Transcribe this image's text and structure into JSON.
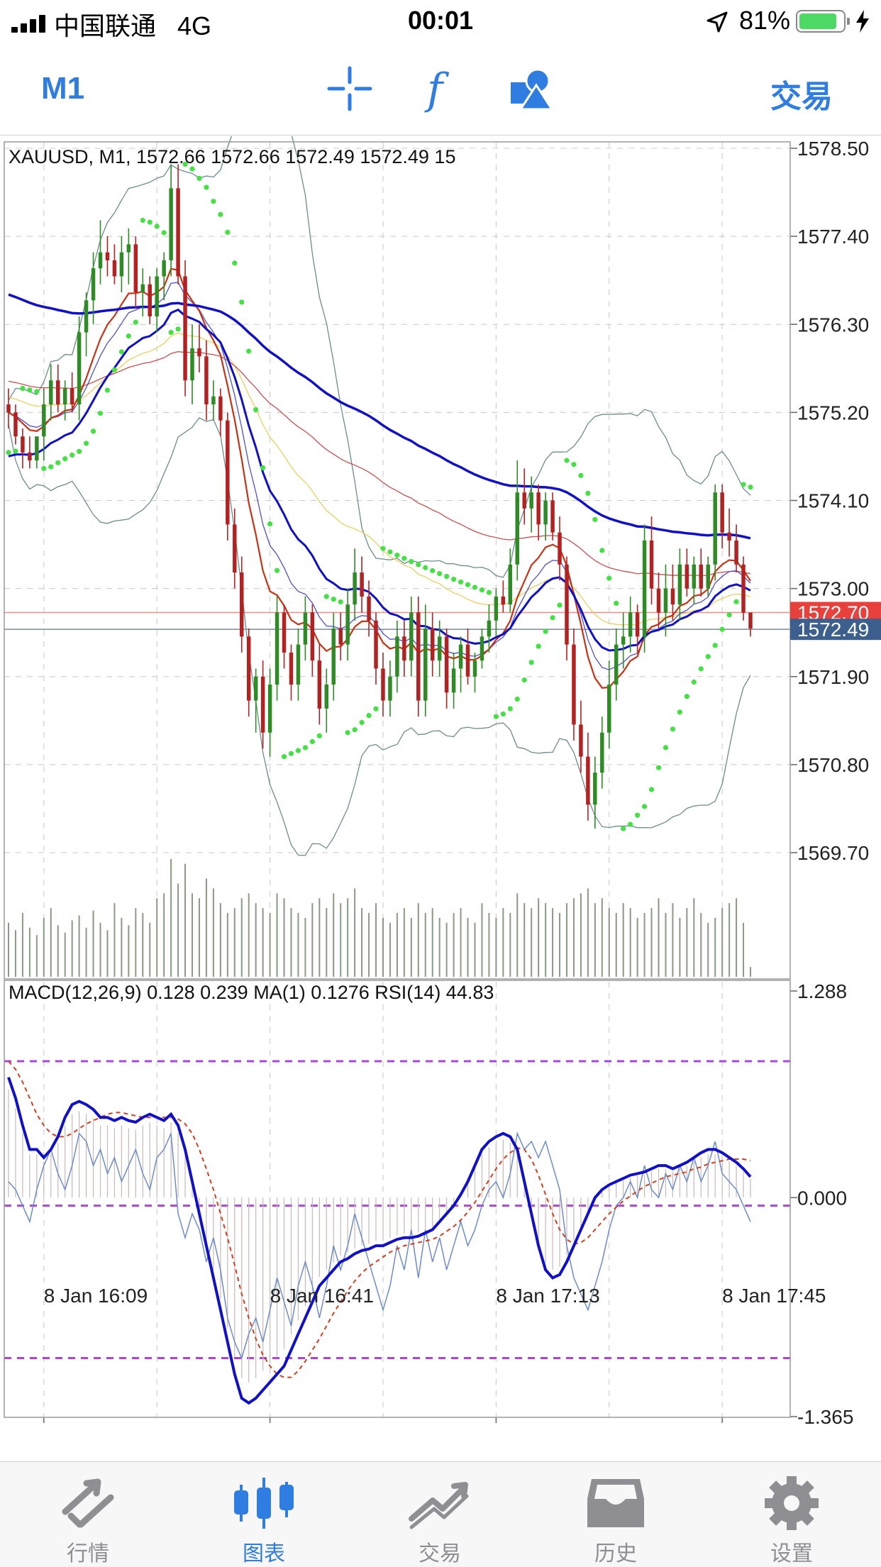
{
  "status_bar": {
    "carrier": "中国联通",
    "network": "4G",
    "time": "00:01",
    "battery_percent": "81%"
  },
  "toolbar": {
    "timeframe": "M1",
    "trade_label": "交易",
    "icons": [
      "crosshair-icon",
      "indicator-f-icon",
      "objects-shapes-icon"
    ],
    "accent_color": "#2f7de1"
  },
  "chart_data": {
    "type": "candlestick",
    "symbol_info": "XAUUSD, M1, 1572.66 1572.66 1572.49 1572.49 15",
    "price_ticks": [
      "1578.50",
      "1577.40",
      "1576.30",
      "1575.20",
      "1574.10",
      "1573.00",
      "1571.90",
      "1570.80",
      "1569.70"
    ],
    "price_range": [
      1569.7,
      1578.5
    ],
    "bid_label": "1572.70",
    "bid": 1572.7,
    "last_label": "1572.49",
    "last": 1572.49,
    "time_labels": [
      "8 Jan 16:09",
      "8 Jan 16:41",
      "8 Jan 17:13",
      "8 Jan 17:45"
    ],
    "candles_ohlc": [
      [
        1575.3,
        1575.5,
        1575.0,
        1575.2
      ],
      [
        1575.2,
        1575.3,
        1574.8,
        1574.9
      ],
      [
        1574.9,
        1575.0,
        1574.5,
        1574.7
      ],
      [
        1574.7,
        1574.9,
        1574.5,
        1574.6
      ],
      [
        1574.6,
        1574.9,
        1574.5,
        1574.9
      ],
      [
        1574.9,
        1575.5,
        1574.6,
        1575.3
      ],
      [
        1575.3,
        1575.8,
        1575.1,
        1575.6
      ],
      [
        1575.6,
        1575.8,
        1575.2,
        1575.3
      ],
      [
        1575.3,
        1575.6,
        1575.1,
        1575.5
      ],
      [
        1575.5,
        1575.7,
        1575.2,
        1575.3
      ],
      [
        1575.3,
        1576.4,
        1575.1,
        1576.2
      ],
      [
        1576.2,
        1576.7,
        1575.9,
        1576.6
      ],
      [
        1576.6,
        1577.2,
        1576.3,
        1577.0
      ],
      [
        1577.0,
        1577.6,
        1576.8,
        1577.2
      ],
      [
        1577.2,
        1577.4,
        1576.9,
        1577.1
      ],
      [
        1577.1,
        1577.3,
        1576.8,
        1576.9
      ],
      [
        1576.9,
        1577.4,
        1576.7,
        1577.2
      ],
      [
        1577.2,
        1577.5,
        1576.8,
        1577.3
      ],
      [
        1577.3,
        1577.4,
        1576.5,
        1576.7
      ],
      [
        1576.7,
        1577.0,
        1576.4,
        1576.8
      ],
      [
        1576.8,
        1576.9,
        1576.3,
        1576.4
      ],
      [
        1576.4,
        1577.0,
        1576.2,
        1576.9
      ],
      [
        1576.9,
        1577.2,
        1576.6,
        1577.1
      ],
      [
        1577.1,
        1578.3,
        1576.9,
        1578.0
      ],
      [
        1578.0,
        1578.3,
        1576.8,
        1576.9
      ],
      [
        1576.9,
        1577.1,
        1575.4,
        1575.6
      ],
      [
        1575.6,
        1576.3,
        1575.3,
        1576.0
      ],
      [
        1576.0,
        1576.3,
        1575.7,
        1575.9
      ],
      [
        1575.9,
        1576.1,
        1575.1,
        1575.3
      ],
      [
        1575.3,
        1575.6,
        1575.1,
        1575.4
      ],
      [
        1575.4,
        1575.5,
        1574.9,
        1575.1
      ],
      [
        1575.1,
        1575.2,
        1573.6,
        1573.8
      ],
      [
        1573.8,
        1574.0,
        1573.0,
        1573.2
      ],
      [
        1573.2,
        1573.4,
        1572.2,
        1572.4
      ],
      [
        1572.4,
        1572.5,
        1571.4,
        1571.6
      ],
      [
        1571.6,
        1572.0,
        1571.2,
        1571.9
      ],
      [
        1571.9,
        1572.1,
        1571.0,
        1571.2
      ],
      [
        1571.2,
        1572.0,
        1570.9,
        1571.8
      ],
      [
        1571.8,
        1572.9,
        1571.6,
        1572.7
      ],
      [
        1572.7,
        1572.8,
        1572.0,
        1572.2
      ],
      [
        1572.2,
        1572.3,
        1571.6,
        1571.8
      ],
      [
        1571.8,
        1572.5,
        1571.6,
        1572.3
      ],
      [
        1572.3,
        1572.9,
        1572.1,
        1572.7
      ],
      [
        1572.7,
        1572.8,
        1571.9,
        1572.1
      ],
      [
        1572.1,
        1572.3,
        1571.3,
        1571.5
      ],
      [
        1571.5,
        1572.0,
        1571.2,
        1571.8
      ],
      [
        1571.8,
        1572.7,
        1571.6,
        1572.5
      ],
      [
        1572.5,
        1572.7,
        1572.1,
        1572.3
      ],
      [
        1572.3,
        1573.0,
        1572.1,
        1572.8
      ],
      [
        1572.8,
        1573.5,
        1572.6,
        1573.2
      ],
      [
        1573.2,
        1573.4,
        1572.7,
        1572.9
      ],
      [
        1572.9,
        1573.1,
        1572.4,
        1572.6
      ],
      [
        1572.6,
        1572.7,
        1571.8,
        1572.0
      ],
      [
        1572.0,
        1572.2,
        1571.4,
        1571.6
      ],
      [
        1571.6,
        1572.1,
        1571.4,
        1571.9
      ],
      [
        1571.9,
        1572.6,
        1571.7,
        1572.4
      ],
      [
        1572.4,
        1572.6,
        1571.9,
        1572.1
      ],
      [
        1572.1,
        1572.9,
        1571.9,
        1572.7
      ],
      [
        1572.7,
        1572.9,
        1571.4,
        1571.6
      ],
      [
        1571.6,
        1572.8,
        1571.4,
        1572.5
      ],
      [
        1572.5,
        1572.7,
        1571.9,
        1572.1
      ],
      [
        1572.1,
        1572.6,
        1571.9,
        1572.4
      ],
      [
        1572.4,
        1572.5,
        1571.5,
        1571.7
      ],
      [
        1571.7,
        1572.2,
        1571.5,
        1572.0
      ],
      [
        1572.0,
        1572.4,
        1571.7,
        1572.3
      ],
      [
        1572.3,
        1572.5,
        1571.8,
        1571.9
      ],
      [
        1571.9,
        1572.2,
        1571.7,
        1572.1
      ],
      [
        1572.1,
        1572.5,
        1572.0,
        1572.4
      ],
      [
        1572.4,
        1572.8,
        1572.2,
        1572.6
      ],
      [
        1572.6,
        1573.0,
        1572.4,
        1572.9
      ],
      [
        1572.9,
        1573.1,
        1572.7,
        1572.8
      ],
      [
        1572.8,
        1573.5,
        1572.7,
        1573.3
      ],
      [
        1573.3,
        1574.6,
        1573.1,
        1574.2
      ],
      [
        1574.2,
        1574.5,
        1573.8,
        1574.0
      ],
      [
        1574.0,
        1574.4,
        1573.7,
        1574.2
      ],
      [
        1574.2,
        1574.3,
        1573.6,
        1573.8
      ],
      [
        1573.8,
        1574.2,
        1573.6,
        1574.1
      ],
      [
        1574.1,
        1574.2,
        1573.6,
        1573.7
      ],
      [
        1573.7,
        1573.9,
        1573.1,
        1573.3
      ],
      [
        1573.3,
        1573.4,
        1572.1,
        1572.3
      ],
      [
        1572.3,
        1572.5,
        1571.1,
        1571.3
      ],
      [
        1571.3,
        1571.6,
        1570.7,
        1570.9
      ],
      [
        1570.9,
        1571.2,
        1570.1,
        1570.3
      ],
      [
        1570.3,
        1570.9,
        1570.0,
        1570.7
      ],
      [
        1570.7,
        1571.4,
        1570.5,
        1571.2
      ],
      [
        1571.2,
        1572.1,
        1571.0,
        1571.8
      ],
      [
        1571.8,
        1572.5,
        1571.6,
        1572.3
      ],
      [
        1572.3,
        1572.7,
        1572.0,
        1572.4
      ],
      [
        1572.4,
        1572.9,
        1572.2,
        1572.7
      ],
      [
        1572.7,
        1572.8,
        1572.2,
        1572.4
      ],
      [
        1572.4,
        1573.8,
        1572.2,
        1573.6
      ],
      [
        1573.6,
        1573.9,
        1572.8,
        1573.0
      ],
      [
        1573.0,
        1573.2,
        1572.5,
        1572.7
      ],
      [
        1572.7,
        1573.3,
        1572.4,
        1573.0
      ],
      [
        1573.0,
        1573.3,
        1572.6,
        1572.8
      ],
      [
        1572.8,
        1573.5,
        1572.6,
        1573.3
      ],
      [
        1573.3,
        1573.5,
        1572.9,
        1573.0
      ],
      [
        1573.0,
        1573.4,
        1572.8,
        1573.3
      ],
      [
        1573.3,
        1573.5,
        1572.9,
        1573.0
      ],
      [
        1573.0,
        1573.4,
        1572.9,
        1573.3
      ],
      [
        1573.3,
        1574.3,
        1573.1,
        1574.2
      ],
      [
        1574.2,
        1574.3,
        1573.5,
        1573.7
      ],
      [
        1573.7,
        1574.0,
        1573.4,
        1573.6
      ],
      [
        1573.6,
        1573.8,
        1573.2,
        1573.3
      ],
      [
        1573.3,
        1573.4,
        1572.6,
        1572.7
      ],
      [
        1572.7,
        1572.7,
        1572.4,
        1572.5
      ]
    ],
    "volume": [
      110,
      95,
      130,
      100,
      85,
      120,
      140,
      105,
      90,
      115,
      125,
      100,
      135,
      110,
      95,
      150,
      120,
      105,
      140,
      130,
      110,
      160,
      170,
      240,
      190,
      230,
      170,
      160,
      200,
      180,
      150,
      130,
      140,
      160,
      170,
      150,
      140,
      130,
      170,
      160,
      140,
      130,
      120,
      150,
      160,
      140,
      170,
      150,
      160,
      180,
      140,
      130,
      150,
      120,
      110,
      130,
      140,
      120,
      150,
      130,
      140,
      120,
      110,
      130,
      140,
      120,
      110,
      150,
      130,
      120,
      140,
      130,
      170,
      150,
      140,
      160,
      150,
      140,
      130,
      150,
      160,
      170,
      180,
      150,
      160,
      140,
      130,
      150,
      140,
      120,
      130,
      140,
      160,
      130,
      150,
      120,
      140,
      160,
      130,
      110,
      120,
      140,
      150,
      160,
      110,
      20
    ],
    "indicator_header": "MACD(12,26,9) 0.128 0.239 MA(1) 0.1276 RSI(14) 44.83",
    "indicator_ticks": [
      "1.288",
      "0.000",
      "-1.365"
    ],
    "indicator_range": [
      -1.365,
      1.288
    ],
    "macd_line": [
      0.75,
      0.62,
      0.45,
      0.3,
      0.3,
      0.25,
      0.3,
      0.38,
      0.5,
      0.58,
      0.6,
      0.58,
      0.55,
      0.5,
      0.5,
      0.48,
      0.5,
      0.48,
      0.47,
      0.5,
      0.52,
      0.5,
      0.48,
      0.52,
      0.45,
      0.3,
      0.1,
      -0.1,
      -0.3,
      -0.5,
      -0.7,
      -0.9,
      -1.1,
      -1.25,
      -1.28,
      -1.25,
      -1.2,
      -1.15,
      -1.1,
      -1.05,
      -0.95,
      -0.85,
      -0.75,
      -0.65,
      -0.55,
      -0.5,
      -0.45,
      -0.4,
      -0.38,
      -0.35,
      -0.33,
      -0.32,
      -0.3,
      -0.3,
      -0.28,
      -0.26,
      -0.25,
      -0.25,
      -0.24,
      -0.22,
      -0.2,
      -0.15,
      -0.1,
      -0.05,
      0.02,
      0.1,
      0.2,
      0.3,
      0.35,
      0.38,
      0.4,
      0.38,
      0.3,
      0.1,
      -0.1,
      -0.3,
      -0.45,
      -0.5,
      -0.48,
      -0.4,
      -0.3,
      -0.2,
      -0.1,
      0.0,
      0.05,
      0.08,
      0.1,
      0.12,
      0.14,
      0.15,
      0.16,
      0.18,
      0.2,
      0.2,
      0.18,
      0.2,
      0.22,
      0.25,
      0.28,
      0.3,
      0.3,
      0.28,
      0.25,
      0.22,
      0.18,
      0.13
    ],
    "signal_line": [
      0.85,
      0.8,
      0.72,
      0.62,
      0.52,
      0.45,
      0.4,
      0.38,
      0.38,
      0.4,
      0.43,
      0.46,
      0.48,
      0.5,
      0.52,
      0.53,
      0.53,
      0.52,
      0.51,
      0.5,
      0.5,
      0.5,
      0.5,
      0.5,
      0.49,
      0.46,
      0.4,
      0.3,
      0.18,
      0.05,
      -0.1,
      -0.25,
      -0.42,
      -0.6,
      -0.75,
      -0.88,
      -0.98,
      -1.05,
      -1.1,
      -1.12,
      -1.12,
      -1.08,
      -1.02,
      -0.95,
      -0.88,
      -0.8,
      -0.72,
      -0.65,
      -0.58,
      -0.52,
      -0.47,
      -0.43,
      -0.4,
      -0.37,
      -0.34,
      -0.32,
      -0.3,
      -0.29,
      -0.28,
      -0.27,
      -0.26,
      -0.24,
      -0.21,
      -0.18,
      -0.14,
      -0.09,
      -0.03,
      0.04,
      0.11,
      0.18,
      0.24,
      0.28,
      0.31,
      0.3,
      0.24,
      0.14,
      0.02,
      -0.1,
      -0.2,
      -0.26,
      -0.29,
      -0.28,
      -0.25,
      -0.2,
      -0.15,
      -0.1,
      -0.06,
      -0.02,
      0.01,
      0.04,
      0.07,
      0.09,
      0.11,
      0.13,
      0.14,
      0.15,
      0.16,
      0.18,
      0.19,
      0.21,
      0.22,
      0.23,
      0.24,
      0.24,
      0.24,
      0.23
    ],
    "rsi_line": [
      0.1,
      0.05,
      -0.05,
      -0.15,
      0.05,
      0.2,
      0.3,
      0.15,
      0.05,
      0.2,
      0.4,
      0.35,
      0.2,
      0.3,
      0.15,
      0.25,
      0.1,
      0.2,
      0.3,
      0.15,
      0.05,
      0.25,
      0.3,
      0.4,
      -0.1,
      -0.25,
      -0.1,
      -0.2,
      -0.4,
      -0.25,
      -0.45,
      -0.75,
      -0.9,
      -1.0,
      -0.85,
      -0.75,
      -0.9,
      -0.7,
      -0.5,
      -0.65,
      -0.8,
      -0.55,
      -0.4,
      -0.55,
      -0.75,
      -0.55,
      -0.3,
      -0.45,
      -0.3,
      -0.1,
      -0.25,
      -0.4,
      -0.55,
      -0.7,
      -0.55,
      -0.3,
      -0.45,
      -0.2,
      -0.5,
      -0.2,
      -0.4,
      -0.25,
      -0.45,
      -0.3,
      -0.15,
      -0.3,
      -0.2,
      -0.05,
      0.05,
      0.1,
      0.0,
      0.15,
      0.4,
      0.3,
      0.35,
      0.25,
      0.35,
      0.2,
      0.05,
      -0.3,
      -0.5,
      -0.6,
      -0.7,
      -0.55,
      -0.4,
      -0.2,
      -0.05,
      0.0,
      0.1,
      0.0,
      0.2,
      0.05,
      0.0,
      0.15,
      0.05,
      0.2,
      0.1,
      0.25,
      0.1,
      0.2,
      0.35,
      0.15,
      0.1,
      0.05,
      -0.05,
      -0.15
    ],
    "macd_levels": [
      0.85,
      -0.05,
      -1.0
    ],
    "colors": {
      "bull": "#2e8b25",
      "bear": "#b22222",
      "ma_slow": "#1010c8",
      "ma_fast": "#c83214",
      "parabolic_sar": "#44e044",
      "bollinger": "#6c8c8c",
      "bid_badge": "#e8403a",
      "last_badge": "#3d5f8e",
      "level_line": "#a848d8"
    }
  },
  "tabbar": {
    "tabs": [
      {
        "label": "行情",
        "icon": "quotes-arrows-icon"
      },
      {
        "label": "图表",
        "icon": "chart-candles-icon",
        "active": true
      },
      {
        "label": "交易",
        "icon": "trade-trend-icon"
      },
      {
        "label": "历史",
        "icon": "history-tray-icon"
      },
      {
        "label": "设置",
        "icon": "settings-gear-icon"
      }
    ]
  }
}
